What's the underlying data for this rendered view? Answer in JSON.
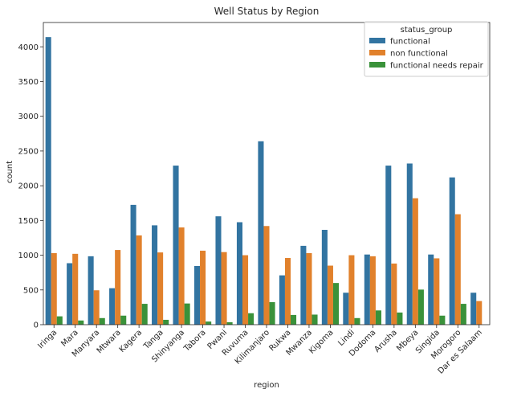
{
  "chart_data": {
    "type": "bar",
    "title": "Well Status by Region",
    "xlabel": "region",
    "ylabel": "count",
    "ylim": [
      0,
      4350
    ],
    "yticks": [
      0,
      500,
      1000,
      1500,
      2000,
      2500,
      3000,
      3500,
      4000
    ],
    "legend_title": "status_group",
    "legend_position": "top-right",
    "categories": [
      "Iringa",
      "Mara",
      "Manyara",
      "Mtwara",
      "Kagera",
      "Tanga",
      "Shinyanga",
      "Tabora",
      "Pwani",
      "Ruvuma",
      "Kilimanjaro",
      "Rukwa",
      "Mwanza",
      "Kigoma",
      "Lindi",
      "Dodoma",
      "Arusha",
      "Mbeya",
      "Singida",
      "Morogoro",
      "Dar es Salaam"
    ],
    "series": [
      {
        "name": "functional",
        "color": "#3274a1",
        "values": [
          4140,
          885,
          985,
          525,
          1725,
          1430,
          2290,
          845,
          1560,
          1475,
          2640,
          710,
          1135,
          1365,
          460,
          1010,
          2290,
          2320,
          1010,
          2120,
          460
        ]
      },
      {
        "name": "non functional",
        "color": "#e1812c",
        "values": [
          1030,
          1020,
          495,
          1075,
          1285,
          1040,
          1400,
          1065,
          1045,
          1000,
          1420,
          960,
          1030,
          850,
          1000,
          985,
          880,
          1820,
          955,
          1590,
          340
        ]
      },
      {
        "name": "functional needs repair",
        "color": "#3a923a",
        "values": [
          120,
          60,
          95,
          130,
          300,
          70,
          305,
          45,
          35,
          165,
          325,
          140,
          145,
          600,
          95,
          205,
          175,
          505,
          130,
          300,
          0
        ]
      }
    ]
  }
}
